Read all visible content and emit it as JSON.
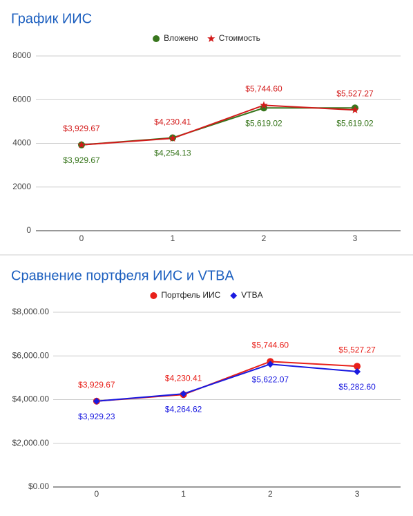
{
  "chart_data": [
    {
      "type": "line",
      "title": "График ИИС",
      "categories": [
        "0",
        "1",
        "2",
        "3"
      ],
      "series": [
        {
          "name": "Вложено",
          "color": "#38761d",
          "marker": "circle",
          "values": [
            3929.67,
            4254.13,
            5619.02,
            5619.02
          ],
          "value_labels": [
            "$3,929.67",
            "$4,254.13",
            "$5,619.02",
            "$5,619.02"
          ]
        },
        {
          "name": "Стоимость",
          "color": "#d31a1a",
          "marker": "star",
          "values": [
            3929.67,
            4230.41,
            5744.6,
            5527.27
          ],
          "value_labels": [
            "$3,929.67",
            "$4,230.41",
            "$5,744.60",
            "$5,527.27"
          ]
        }
      ],
      "ylim": [
        0,
        8000
      ],
      "yticks": [
        0,
        2000,
        4000,
        6000,
        8000
      ],
      "grid": true,
      "legend": "top"
    },
    {
      "type": "line",
      "title": "Сравнение портфеля ИИС и VTBA",
      "categories": [
        "0",
        "1",
        "2",
        "3"
      ],
      "series": [
        {
          "name": "Портфель ИИС",
          "color": "#e8201a",
          "marker": "circle",
          "values": [
            3929.67,
            4230.41,
            5744.6,
            5527.27
          ],
          "value_labels": [
            "$3,929.67",
            "$4,230.41",
            "$5,744.60",
            "$5,527.27"
          ]
        },
        {
          "name": "VTBA",
          "color": "#1a1ae0",
          "marker": "diamond",
          "values": [
            3929.23,
            4264.62,
            5622.07,
            5282.6
          ],
          "value_labels": [
            "$3,929.23",
            "$4,264.62",
            "$5,622.07",
            "$5,282.60"
          ]
        }
      ],
      "ylim": [
        0,
        8000
      ],
      "yticks": [
        {
          "value": 0,
          "label": "$0.00"
        },
        {
          "value": 2000,
          "label": "$2,000.00"
        },
        {
          "value": 4000,
          "label": "$4,000.00"
        },
        {
          "value": 6000,
          "label": "$6,000.00"
        },
        {
          "value": 8000,
          "label": "$8,000.00"
        }
      ],
      "grid": true,
      "legend": "top"
    }
  ]
}
